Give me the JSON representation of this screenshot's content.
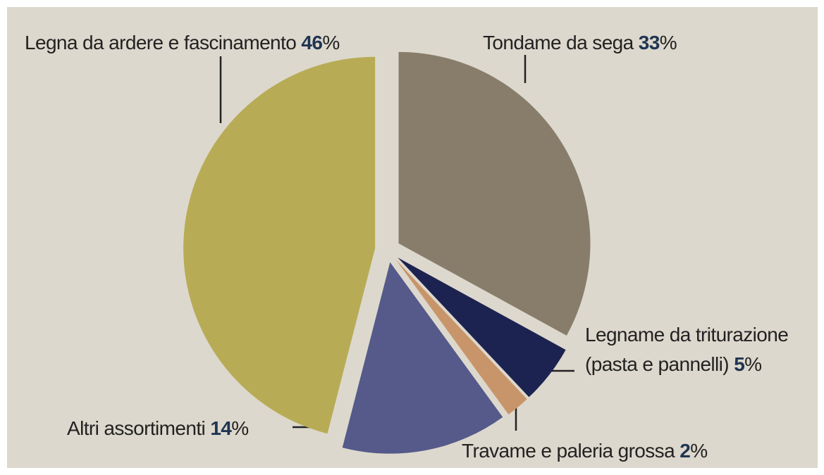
{
  "chart_data": {
    "type": "pie",
    "categories": [
      "Tondame da sega",
      "Legname da triturazione (pasta e pannelli)",
      "Travame e paleria grossa",
      "Altri assortimenti",
      "Legna da ardere e fascinamento"
    ],
    "values": [
      33,
      5,
      2,
      14,
      46
    ],
    "unit": "%",
    "colors": [
      "#877d6a",
      "#1d2350",
      "#c8956a",
      "#555a8a",
      "#b7ac55"
    ]
  }
}
